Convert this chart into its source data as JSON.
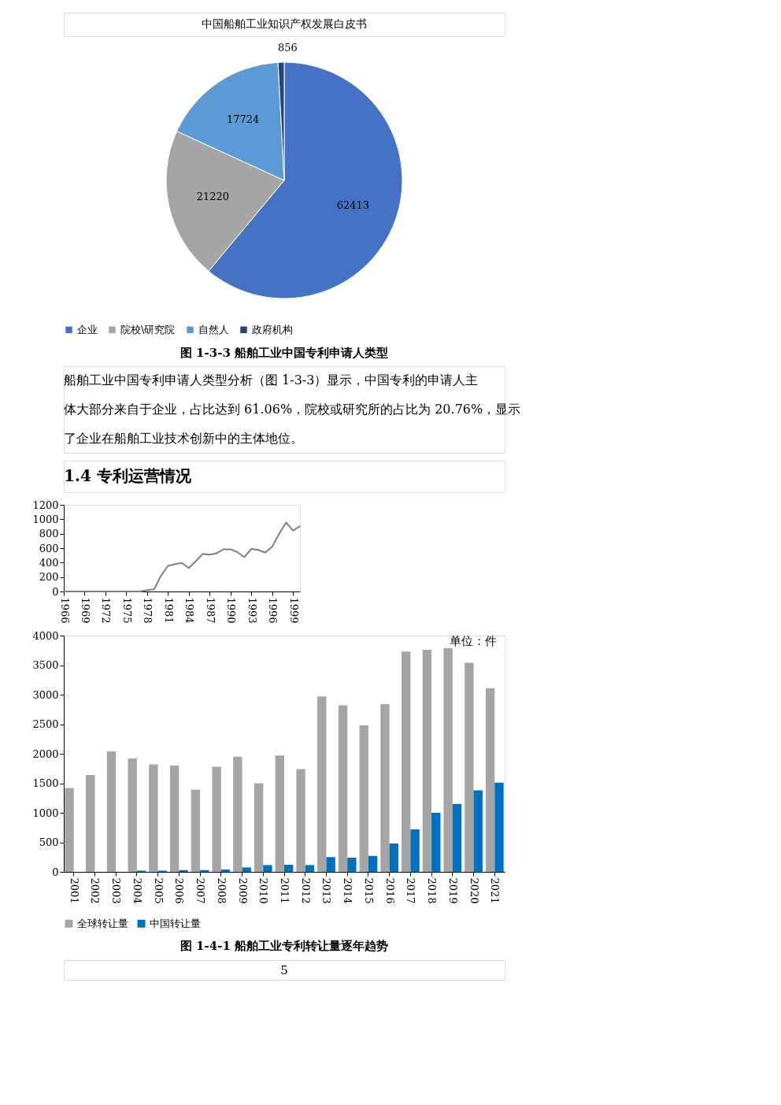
{
  "chart_data": [
    {
      "type": "pie",
      "title": "图 1-3-3  船舶工业中国专利申请人类型",
      "categories": [
        "企业",
        "院校\\研究院",
        "自然人",
        "政府机构"
      ],
      "values": [
        62413,
        21220,
        17724,
        856
      ],
      "colors": [
        "#4472c4",
        "#a5a5a5",
        "#5b9bd5",
        "#264478"
      ],
      "data_labels": true,
      "legend": "bottom",
      "annotations": [
        "中国船舶工业知识产权发展白皮书",
        "船舶工业中国专利申请人类型分析（图 1-3-3）显示，中国专利的申请人主",
        "体大部分来自于企业，占比达到 61.06%，院校或研究所的占比为 20.76%，显示",
        "了企业在船舶工业技术创新中的主体地位。"
      ]
    },
    {
      "type": "line",
      "x": [
        1966,
        1967,
        1968,
        1969,
        1970,
        1971,
        1972,
        1973,
        1974,
        1975,
        1976,
        1977,
        1978,
        1979,
        1980,
        1981,
        1982,
        1983,
        1984,
        1985,
        1986,
        1987,
        1988,
        1989,
        1990,
        1991,
        1992,
        1993,
        1994,
        1995,
        1996,
        1997,
        1998,
        1999,
        2000
      ],
      "series": [
        {
          "color": "#7f7f7f",
          "values": [
            0,
            0,
            0,
            0,
            0,
            0,
            0,
            0,
            0,
            0,
            0,
            0,
            20,
            30,
            220,
            355,
            380,
            395,
            325,
            420,
            520,
            510,
            530,
            585,
            585,
            545,
            475,
            590,
            575,
            540,
            620,
            800,
            955,
            845,
            905
          ]
        }
      ],
      "xlim": [
        1966,
        2000
      ],
      "xticks": [
        1966,
        1969,
        1972,
        1975,
        1978,
        1981,
        1984,
        1987,
        1990,
        1993,
        1996,
        1999
      ],
      "ylim": [
        0,
        1200
      ],
      "yticks": [
        0,
        200,
        400,
        600,
        800,
        1000,
        1200
      ],
      "grid": false
    },
    {
      "type": "bar",
      "title": "图 1-4-1  船舶工业专利转让量逐年趋势",
      "categories": [
        "2001",
        "2002",
        "2003",
        "2004",
        "2005",
        "2006",
        "2007",
        "2008",
        "2009",
        "2010",
        "2011",
        "2012",
        "2013",
        "2014",
        "2015",
        "2016",
        "2017",
        "2018",
        "2019",
        "2020",
        "2021"
      ],
      "series": [
        {
          "name": "全球转让量",
          "color": "#a5a5a5",
          "values": [
            1420,
            1640,
            2040,
            1920,
            1820,
            1800,
            1390,
            1780,
            1950,
            1500,
            1970,
            1740,
            2970,
            2820,
            2480,
            2840,
            3730,
            3760,
            3790,
            3540,
            3110
          ]
        },
        {
          "name": "中国转让量",
          "color": "#0070c0",
          "values": [
            0,
            0,
            0,
            20,
            20,
            30,
            30,
            40,
            75,
            115,
            120,
            115,
            250,
            240,
            270,
            480,
            720,
            1000,
            1150,
            1380,
            1510
          ]
        }
      ],
      "ylim": [
        0,
        4000
      ],
      "yticks": [
        0,
        500,
        1000,
        1500,
        2000,
        2500,
        3000,
        3500,
        4000
      ],
      "grid": false,
      "legend": "bottom",
      "annotations": [
        "1.4 专利运营情况",
        "单位：件",
        "5"
      ]
    }
  ]
}
